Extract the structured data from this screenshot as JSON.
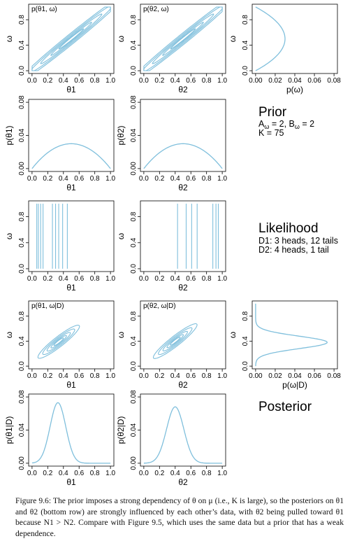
{
  "figure": {
    "prior_heading": "Prior",
    "prior_params": [
      "A",
      "ω",
      " = 2, B",
      "ω",
      " = 2"
    ],
    "prior_k": "K = 75",
    "likelihood_heading": "Likelihood",
    "likelihood_d1": "D1: 3 heads, 12 tails",
    "likelihood_d2": "D2: 4 heads, 1 tail",
    "posterior_heading": "Posterior",
    "caption": "Figure 9.6: The prior imposes a strong dependency of θ on μ (i.e., K is large), so the posteriors on θ1 and θ2 (bottom row) are strongly influenced by each other’s data, with θ2 being pulled toward θ1 because N1 > N2. Compare with Figure 9.5, which uses the same data but a prior that has a weak dependence."
  },
  "colors": {
    "curve": "#7fbfdc",
    "axis": "#000000"
  },
  "chart_data": [
    {
      "id": "prior-joint-theta1",
      "type": "contour",
      "title": "p(θ1, ω)",
      "xlabel": "θ1",
      "ylabel": "ω",
      "xlim": [
        0,
        1
      ],
      "ylim": [
        0,
        1
      ],
      "xticks": [
        "0.0",
        "0.2",
        "0.4",
        "0.6",
        "0.8",
        "1.0"
      ],
      "yticks": [
        "0.0",
        "0.4",
        "0.8"
      ],
      "center": [
        0.5,
        0.5
      ],
      "cov": [
        [
          0.0835,
          0.0827
        ],
        [
          0.0827,
          0.0835
        ]
      ]
    },
    {
      "id": "prior-joint-theta2",
      "type": "contour",
      "title": "p(θ2, ω)",
      "xlabel": "θ2",
      "ylabel": "ω",
      "xlim": [
        0,
        1
      ],
      "ylim": [
        0,
        1
      ],
      "xticks": [
        "0.0",
        "0.2",
        "0.4",
        "0.6",
        "0.8",
        "1.0"
      ],
      "yticks": [
        "0.0",
        "0.4",
        "0.8"
      ],
      "center": [
        0.5,
        0.5
      ],
      "cov": [
        [
          0.0835,
          0.0827
        ],
        [
          0.0827,
          0.0835
        ]
      ]
    },
    {
      "id": "prior-marginal-omega",
      "type": "line",
      "orientation": "horizontal",
      "xlabel": "p(ω)",
      "ylabel": "ω",
      "xlim": [
        0,
        0.08
      ],
      "ylim": [
        0,
        1
      ],
      "xticks": [
        "0.00",
        "0.02",
        "0.04",
        "0.06",
        "0.08"
      ],
      "yticks": [
        "0.0",
        "0.4",
        "0.8"
      ],
      "shape": "beta",
      "a": 2,
      "b": 2,
      "peak": 0.03
    },
    {
      "id": "prior-marginal-theta1",
      "type": "line",
      "xlabel": "θ1",
      "ylabel": "p(θ1)",
      "xlim": [
        0,
        1
      ],
      "ylim": [
        0,
        0.08
      ],
      "xticks": [
        "0.0",
        "0.2",
        "0.4",
        "0.6",
        "0.8",
        "1.0"
      ],
      "yticks": [
        "0.00",
        "0.04",
        "0.08"
      ],
      "shape": "beta",
      "a": 2,
      "b": 2,
      "peak": 0.03
    },
    {
      "id": "prior-marginal-theta2",
      "type": "line",
      "xlabel": "θ2",
      "ylabel": "p(θ2)",
      "xlim": [
        0,
        1
      ],
      "ylim": [
        0,
        0.08
      ],
      "xticks": [
        "0.0",
        "0.2",
        "0.4",
        "0.6",
        "0.8",
        "1.0"
      ],
      "yticks": [
        "0.00",
        "0.04",
        "0.08"
      ],
      "shape": "beta",
      "a": 2,
      "b": 2,
      "peak": 0.03
    },
    {
      "id": "likelihood-theta1",
      "type": "contour-lines",
      "xlabel": "θ1",
      "ylabel": "ω",
      "xlim": [
        0,
        1
      ],
      "ylim": [
        0,
        1
      ],
      "xticks": [
        "0.0",
        "0.2",
        "0.4",
        "0.6",
        "0.8",
        "1.0"
      ],
      "yticks": [
        "0.0",
        "0.4",
        "0.8"
      ],
      "x_values": [
        0.06,
        0.08,
        0.11,
        0.14,
        0.26,
        0.3,
        0.34,
        0.39,
        0.45
      ]
    },
    {
      "id": "likelihood-theta2",
      "type": "contour-lines",
      "xlabel": "θ2",
      "ylabel": "ω",
      "xlim": [
        0,
        1
      ],
      "ylim": [
        0,
        1
      ],
      "xticks": [
        "0.0",
        "0.2",
        "0.4",
        "0.6",
        "0.8",
        "1.0"
      ],
      "yticks": [
        "0.0",
        "0.4",
        "0.8"
      ],
      "x_values": [
        0.43,
        0.54,
        0.61,
        0.68,
        0.88,
        0.92,
        0.95
      ]
    },
    {
      "id": "posterior-joint-theta1",
      "type": "contour",
      "title": "p(θ1, ω|D)",
      "xlabel": "θ1",
      "ylabel": "ω",
      "xlim": [
        0,
        1
      ],
      "ylim": [
        0,
        1
      ],
      "xticks": [
        "0.0",
        "0.2",
        "0.4",
        "0.6",
        "0.8",
        "1.0"
      ],
      "yticks": [
        "0.0",
        "0.4",
        "0.8"
      ],
      "center": [
        0.34,
        0.39
      ],
      "cov": [
        [
          0.0122,
          0.0113
        ],
        [
          0.0113,
          0.0122
        ]
      ]
    },
    {
      "id": "posterior-joint-theta2",
      "type": "contour",
      "title": "p(θ2, ω|D)",
      "xlabel": "θ2",
      "ylabel": "ω",
      "xlim": [
        0,
        1
      ],
      "ylim": [
        0,
        1
      ],
      "xticks": [
        "0.0",
        "0.2",
        "0.4",
        "0.6",
        "0.8",
        "1.0"
      ],
      "yticks": [
        "0.0",
        "0.4",
        "0.8"
      ],
      "center": [
        0.4,
        0.4
      ],
      "cov": [
        [
          0.0135,
          0.0126
        ],
        [
          0.0126,
          0.0135
        ]
      ]
    },
    {
      "id": "posterior-marginal-omega",
      "type": "line",
      "orientation": "horizontal",
      "xlabel": "p(ω|D)",
      "ylabel": "ω",
      "xlim": [
        0,
        0.08
      ],
      "ylim": [
        0,
        1
      ],
      "xticks": [
        "0.00",
        "0.02",
        "0.04",
        "0.06",
        "0.08"
      ],
      "yticks": [
        "0.0",
        "0.4",
        "0.8"
      ],
      "shape": "gauss",
      "mean": 0.38,
      "sd": 0.1,
      "peak": 0.073
    },
    {
      "id": "posterior-marginal-theta1",
      "type": "line",
      "xlabel": "θ1",
      "ylabel": "p(θ1|D)",
      "xlim": [
        0,
        1
      ],
      "ylim": [
        0,
        0.08
      ],
      "xticks": [
        "0.0",
        "0.2",
        "0.4",
        "0.6",
        "0.8",
        "1.0"
      ],
      "yticks": [
        "0.00",
        "0.04",
        "0.08"
      ],
      "shape": "gauss",
      "mean": 0.33,
      "sd": 0.1,
      "peak": 0.073
    },
    {
      "id": "posterior-marginal-theta2",
      "type": "line",
      "xlabel": "θ2",
      "ylabel": "p(θ2|D)",
      "xlim": [
        0,
        1
      ],
      "ylim": [
        0,
        0.08
      ],
      "xticks": [
        "0.0",
        "0.2",
        "0.4",
        "0.6",
        "0.8",
        "1.0"
      ],
      "yticks": [
        "0.00",
        "0.04",
        "0.08"
      ],
      "shape": "gauss",
      "mean": 0.4,
      "sd": 0.11,
      "peak": 0.068
    }
  ]
}
